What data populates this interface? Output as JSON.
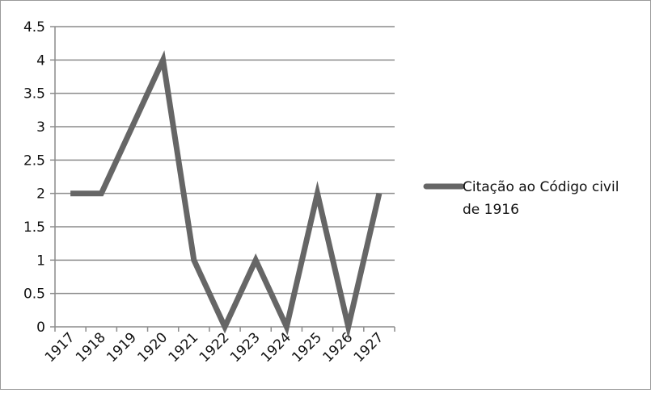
{
  "chart_data": {
    "type": "line",
    "categories": [
      "1917",
      "1918",
      "1919",
      "1920",
      "1921",
      "1922",
      "1923",
      "1924",
      "1925",
      "1926",
      "1927"
    ],
    "series": [
      {
        "name": "Citação ao Código civil de 1916",
        "values": [
          2,
          2,
          3,
          4,
          1,
          0,
          1,
          0,
          2,
          0,
          2
        ]
      }
    ],
    "ylim": [
      0,
      4.5
    ],
    "yticks": [
      "0",
      "0.5",
      "1",
      "1.5",
      "2",
      "2.5",
      "3",
      "3.5",
      "4",
      "4.5"
    ],
    "grid": true,
    "legend_position": "right",
    "legend": {
      "line1": "Citação ao Código civil",
      "line2": "de 1916"
    },
    "colors": {
      "series": "#666666",
      "grid": "#8c8c8c",
      "axis": "#8c8c8c"
    }
  }
}
